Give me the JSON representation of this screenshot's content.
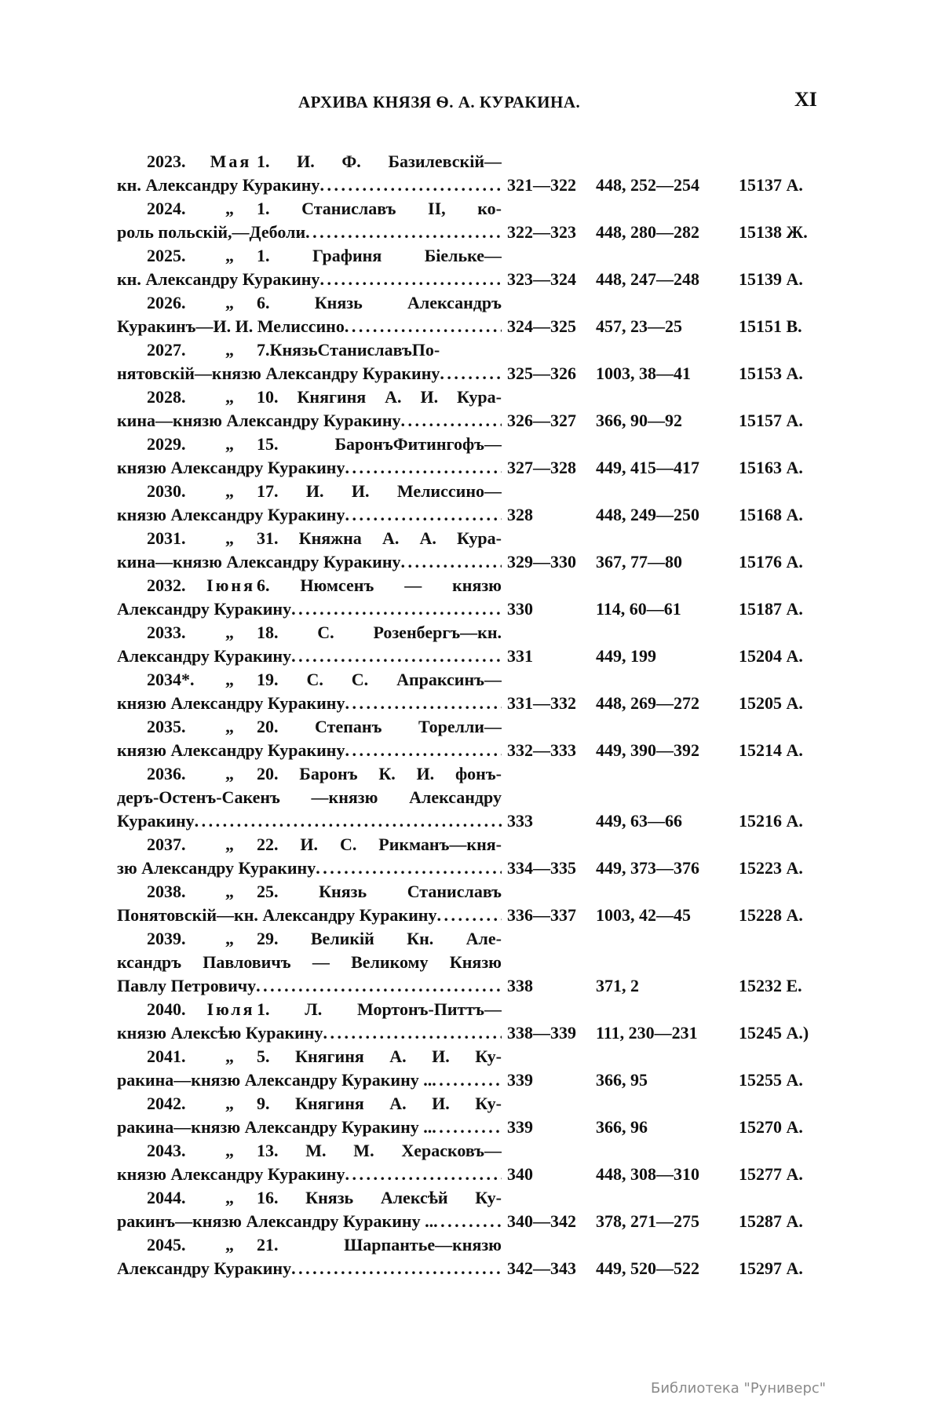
{
  "header": {
    "title": "АРХИВА КНЯЗЯ Ѳ. А. КУРАКИНА.",
    "page_number": "XI"
  },
  "entries": [
    {
      "num": "2023.",
      "month": "Мая",
      "head": "1. И. Ф. Базилевскій—",
      "lines": [],
      "last": "кн. Александру Куракину",
      "pages": "321—322",
      "vol": "448, 252—254",
      "archive": "15137 А."
    },
    {
      "num": "2024.",
      "month": "„",
      "head": "1. Станиславъ II, ко-",
      "lines": [],
      "last": "роль польскій,—Деболи",
      "pages": "322—323",
      "vol": "448, 280—282",
      "archive": "15138 Ж."
    },
    {
      "num": "2025.",
      "month": "„",
      "head": "1. Графиня Біельке—",
      "lines": [],
      "last": "кн. Александру Куракину",
      "pages": "323—324",
      "vol": "448, 247—248",
      "archive": "15139 А."
    },
    {
      "num": "2026.",
      "month": "„",
      "head": "6. Князь Александръ",
      "lines": [],
      "last": "Куракинъ—И. И. Мелиссино",
      "pages": "324—325",
      "vol": "457, 23—25",
      "archive": "15151 В."
    },
    {
      "num": "2027.",
      "month": "„",
      "head": "7.КнязьСтаниславъПо-",
      "lines": [],
      "last": "нятовскій—князю Александру Куракину",
      "pages": "325—326",
      "vol": "1003, 38—41",
      "archive": "15153 А."
    },
    {
      "num": "2028.",
      "month": "„",
      "head": "10. Княгиня А. И. Кура-",
      "lines": [],
      "last": "кина—князю Александру Куракину",
      "pages": "326—327",
      "vol": "366, 90—92",
      "archive": "15157 А."
    },
    {
      "num": "2029.",
      "month": "„",
      "head": "15. БаронъФитингофъ—",
      "lines": [],
      "last": "князю Александру Куракину",
      "pages": "327—328",
      "vol": "449, 415—417",
      "archive": "15163 А."
    },
    {
      "num": "2030.",
      "month": "„",
      "head": "17. И. И. Мелиссино—",
      "lines": [],
      "last": "князю Александру Куракину",
      "pages": "328",
      "vol": "448, 249—250",
      "archive": "15168 А."
    },
    {
      "num": "2031.",
      "month": "„",
      "head": "31. Княжна А. А. Кура-",
      "lines": [],
      "last": "кина—князю Александру Куракину",
      "pages": "329—330",
      "vol": "367, 77—80",
      "archive": "15176 А."
    },
    {
      "num": "2032.",
      "month": "Іюня",
      "head": "6. Нюмсенъ — князю",
      "lines": [],
      "last": "Александру Куракину",
      "pages": "330",
      "vol": "114, 60—61",
      "archive": "15187 А."
    },
    {
      "num": "2033.",
      "month": "„",
      "head": "18. С. Розенбергъ—кн.",
      "lines": [],
      "last": "Александру Куракину",
      "pages": "331",
      "vol": "449, 199",
      "archive": "15204 А."
    },
    {
      "num": "2034*.",
      "month": "„",
      "head": "19. С. С. Апраксинъ—",
      "lines": [],
      "last": "князю Александру Куракину",
      "pages": "331—332",
      "vol": "448, 269—272",
      "archive": "15205 А."
    },
    {
      "num": "2035.",
      "month": "„",
      "head": "20. Степанъ Торелли—",
      "lines": [],
      "last": "князю Александру Куракину",
      "pages": "332—333",
      "vol": "449, 390—392",
      "archive": "15214 А."
    },
    {
      "num": "2036.",
      "month": "„",
      "head": "20. Баронъ К. И. фонъ-",
      "lines": [
        "деръ-Остенъ-Сакенъ —князю Александру"
      ],
      "last": "Куракину",
      "pages": "333",
      "vol": "449, 63—66",
      "archive": "15216 А."
    },
    {
      "num": "2037.",
      "month": "„",
      "head": "22. И. С. Рикманъ—кня-",
      "lines": [],
      "last": "зю Александру Куракину",
      "pages": "334—335",
      "vol": "449, 373—376",
      "archive": "15223 А."
    },
    {
      "num": "2038.",
      "month": "„",
      "head": "25. Князь Станиславъ",
      "lines": [],
      "last": "Понятовскій—кн. Александру Куракину",
      "pages": "336—337",
      "vol": "1003, 42—45",
      "archive": "15228 А."
    },
    {
      "num": "2039.",
      "month": "„",
      "head": "29. Великій Кн. Але-",
      "lines": [
        "ксандръ Павловичъ — Великому Князю"
      ],
      "last": "Павлу Петровичу",
      "pages": "338",
      "vol": "371, 2",
      "archive": "15232 Е."
    },
    {
      "num": "2040.",
      "month": "Іюля",
      "head": "1. Л. Мортонъ-Питтъ—",
      "lines": [],
      "last": "князю Алексѣю Куракину",
      "pages": "338—339",
      "vol": "111, 230—231",
      "archive": "15245 А.)"
    },
    {
      "num": "2041.",
      "month": "„",
      "head": "5. Княгиня А. И. Ку-",
      "lines": [],
      "last": "ракина—князю Александру Куракину ..",
      "pages": "339",
      "vol": "366, 95",
      "archive": "15255 А."
    },
    {
      "num": "2042.",
      "month": "„",
      "head": "9. Княгиня А. И. Ку-",
      "lines": [],
      "last": "ракина—князю Александру Куракину ..",
      "pages": "339",
      "vol": "366, 96",
      "archive": "15270 А."
    },
    {
      "num": "2043.",
      "month": "„",
      "head": "13. М. М. Херасковъ—",
      "lines": [],
      "last": "князю Александру Куракину",
      "pages": "340",
      "vol": "448, 308—310",
      "archive": "15277 А."
    },
    {
      "num": "2044.",
      "month": "„",
      "head": "16. Князь Алексѣй Ку-",
      "lines": [],
      "last": "ракинъ—князю Александру Куракину ..",
      "pages": "340—342",
      "vol": "378, 271—275",
      "archive": "15287 А."
    },
    {
      "num": "2045.",
      "month": "„",
      "head": "21. Шарпантье—князю",
      "lines": [],
      "last": "Александру Куракину",
      "pages": "342—343",
      "vol": "449, 520—522",
      "archive": "15297 А."
    }
  ],
  "watermark": "Библиотека \"Руниверс\""
}
